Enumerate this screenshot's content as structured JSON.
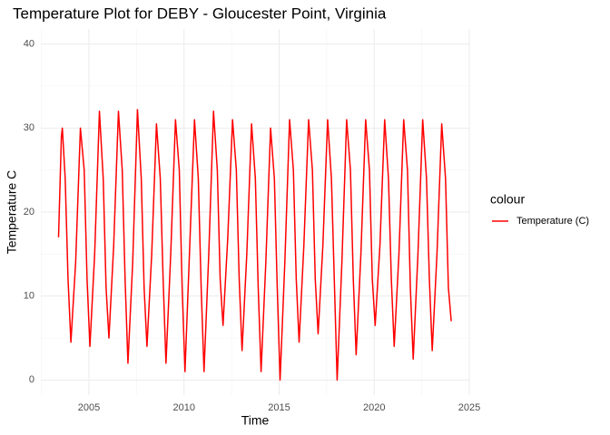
{
  "chart_data": {
    "type": "line",
    "title": "Temperature Plot for DEBY - Gloucester Point, Virginia",
    "x_label": "Time",
    "y_label": "Temperature C",
    "legend_title": "colour",
    "legend": "right",
    "grid": true,
    "xlim": [
      2002.47,
      2025
    ],
    "ylim": [
      -1.8,
      41.8
    ],
    "xticks": [
      2005,
      2010,
      2015,
      2020,
      2025
    ],
    "yticks": [
      0,
      10,
      20,
      30,
      40
    ],
    "x_minor_grid": [
      2002.5,
      2007.5,
      2012.5,
      2017.5,
      2022.5
    ],
    "y_minor_grid": [
      5,
      15,
      25,
      35
    ],
    "x": [
      2003.4,
      2003.55,
      2003.6,
      2003.75,
      2003.9,
      2004.05,
      2004.3,
      2004.55,
      2004.75,
      2004.9,
      2005.05,
      2005.3,
      2005.55,
      2005.75,
      2005.9,
      2006.05,
      2006.3,
      2006.55,
      2006.75,
      2006.9,
      2007.05,
      2007.3,
      2007.55,
      2007.75,
      2007.9,
      2008.05,
      2008.3,
      2008.55,
      2008.75,
      2008.9,
      2009.05,
      2009.3,
      2009.55,
      2009.75,
      2009.9,
      2010.05,
      2010.3,
      2010.55,
      2010.75,
      2010.9,
      2011.05,
      2011.3,
      2011.55,
      2011.75,
      2011.9,
      2012.05,
      2012.3,
      2012.55,
      2012.75,
      2012.9,
      2013.05,
      2013.3,
      2013.55,
      2013.75,
      2013.9,
      2014.05,
      2014.3,
      2014.55,
      2014.75,
      2014.9,
      2015.05,
      2015.3,
      2015.55,
      2015.75,
      2015.9,
      2016.05,
      2016.3,
      2016.55,
      2016.75,
      2016.9,
      2017.05,
      2017.3,
      2017.55,
      2017.75,
      2017.9,
      2018.05,
      2018.3,
      2018.55,
      2018.75,
      2018.9,
      2019.05,
      2019.3,
      2019.55,
      2019.75,
      2019.9,
      2020.05,
      2020.3,
      2020.55,
      2020.75,
      2020.9,
      2021.05,
      2021.3,
      2021.55,
      2021.75,
      2021.9,
      2022.05,
      2022.3,
      2022.55,
      2022.75,
      2022.9,
      2023.05,
      2023.3,
      2023.55,
      2023.75,
      2023.9,
      2024.05
    ],
    "series": [
      {
        "name": "Temperature (C)",
        "color": "#ff0000",
        "values": [
          17,
          29,
          30,
          24,
          12,
          4.5,
          14,
          30,
          25,
          12,
          4,
          15,
          32,
          24,
          11,
          5,
          16,
          32,
          25,
          12,
          2,
          14,
          32.2,
          24,
          11,
          4,
          15,
          30.5,
          24,
          12,
          2,
          15,
          31,
          25,
          11,
          1,
          16,
          31,
          24,
          11,
          1,
          15,
          32,
          25,
          12,
          6.5,
          17,
          31,
          25,
          12,
          3.5,
          15,
          30.5,
          24,
          11,
          1,
          14,
          30,
          24,
          11,
          0,
          14,
          31,
          25,
          12,
          4.5,
          16,
          31,
          25,
          12,
          5.5,
          16,
          31,
          24,
          12,
          0,
          14,
          31,
          25,
          12,
          3,
          15,
          31,
          25,
          12,
          6.5,
          16,
          31,
          24,
          12,
          4,
          15,
          31,
          25,
          11,
          2.5,
          15,
          31,
          24,
          12,
          3.5,
          15,
          30.5,
          24,
          11,
          7
        ]
      }
    ]
  }
}
